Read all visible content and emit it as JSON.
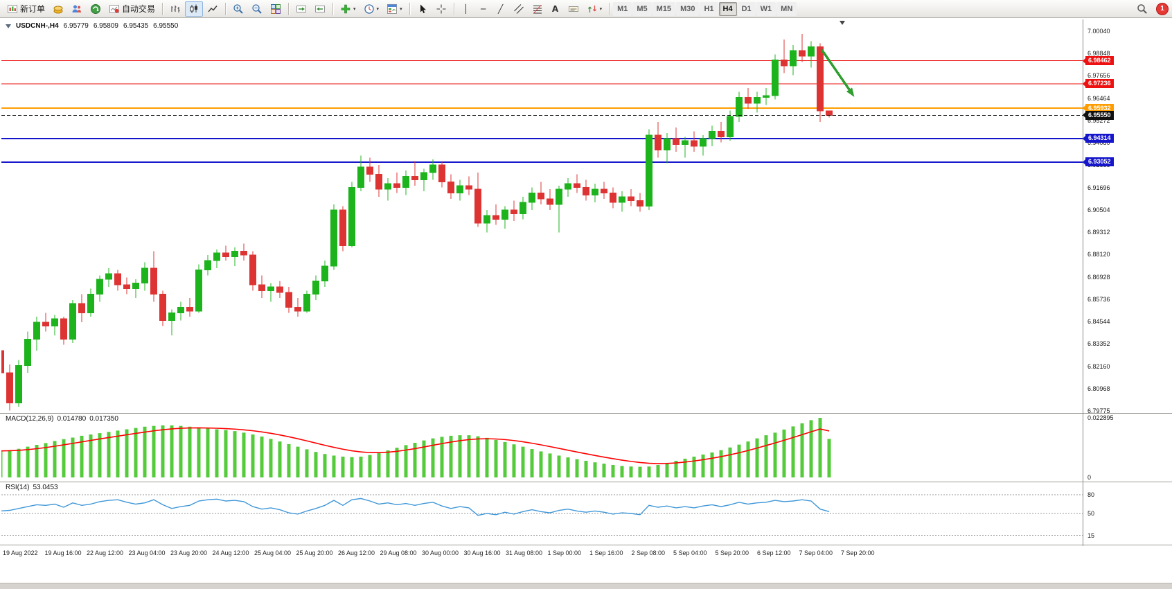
{
  "toolbar": {
    "new_order_label": "新订单",
    "autotrading_label": "自动交易",
    "timeframes": [
      "M1",
      "M5",
      "M15",
      "M30",
      "H1",
      "H4",
      "D1",
      "W1",
      "MN"
    ],
    "active_timeframe": "H4",
    "notification_count": "1",
    "tool_glyphs": {
      "vertical_line": "│",
      "horizontal_line": "─",
      "trendline": "╱",
      "text": "A"
    }
  },
  "icons": {
    "new_order": "candlestick-page",
    "mql_market": "gold-coins",
    "mql_signals": "people",
    "mql_vps": "green-support",
    "autotrading": "chart-red-dot",
    "bars_chart": "ohlc-bars",
    "candles_chart": "candles",
    "line_chart": "polyline",
    "zoom_in": "magnifier-plus",
    "zoom_out": "magnifier-minus",
    "tile_windows": "four-tiles",
    "auto_scroll": "chart-arrow-right",
    "chart_shift": "chart-arrow-left",
    "indicators": "green-plus",
    "periods": "clock",
    "templates": "template-sheet",
    "cursor": "pointer-arrow",
    "crosshair": "crosshair",
    "vertical_line": "│",
    "horizontal_line": "─",
    "trendline": "╱",
    "channel": "parallel-lines",
    "fibonacci": "fibo-lines",
    "text": "A",
    "text_label": "label-box",
    "arrows": "up-down-arrows",
    "search": "magnifier",
    "dropdown_caret": "▾"
  },
  "header": {
    "symbol": "USDCNH-,H4",
    "open": "6.95779",
    "high": "6.95809",
    "low": "6.95435",
    "close": "6.95550"
  },
  "price_axis": {
    "labels": [
      "7.00040",
      "6.98848",
      "6.97656",
      "6.96464",
      "6.95272",
      "6.94080",
      "6.92888",
      "6.91696",
      "6.90504",
      "6.89312",
      "6.88120",
      "6.86928",
      "6.85736",
      "6.84544",
      "6.83352",
      "6.82160",
      "6.80968",
      "6.79775"
    ]
  },
  "time_axis": {
    "labels": [
      "19 Aug 2022",
      "19 Aug 16:00",
      "22 Aug 12:00",
      "23 Aug 04:00",
      "23 Aug 20:00",
      "24 Aug 12:00",
      "25 Aug 04:00",
      "25 Aug 20:00",
      "26 Aug 12:00",
      "29 Aug 08:00",
      "30 Aug 00:00",
      "30 Aug 16:00",
      "31 Aug 08:00",
      "1 Sep 00:00",
      "1 Sep 16:00",
      "2 Sep 08:00",
      "5 Sep 04:00",
      "5 Sep 20:00",
      "6 Sep 12:00",
      "7 Sep 04:00",
      "7 Sep 20:00"
    ]
  },
  "macd": {
    "label": "MACD(12,26,9)",
    "value": "0.014780",
    "signal": "0.017350",
    "axis_max": "0.022895",
    "axis_min": "0"
  },
  "rsi": {
    "label": "RSI(14)",
    "value": "53.0453",
    "level_labels": [
      "80",
      "50",
      "15"
    ]
  },
  "chart_data": [
    {
      "type": "candlestick",
      "title": "USDCNH- H4",
      "timeframe": "H4",
      "ylim": [
        6.79775,
        7.0004
      ],
      "up_color": "#1db31d",
      "down_color": "#dd3333",
      "levels": [
        {
          "value": 6.98462,
          "label": "6.98462",
          "color": "#ee1111",
          "width": 1
        },
        {
          "value": 6.97236,
          "label": "6.97236",
          "color": "#ee1111",
          "width": 1
        },
        {
          "value": 6.95932,
          "label": "6.95932",
          "color": "#ff9d00",
          "width": 2
        },
        {
          "value": 6.94314,
          "label": "6.94314",
          "color": "#1515cc",
          "width": 2
        },
        {
          "value": 6.93052,
          "label": "6.93052",
          "color": "#1515cc",
          "width": 2
        }
      ],
      "current_price": {
        "value": 6.9555,
        "label": "6.95550",
        "color": "#111111"
      },
      "annotation_arrow": {
        "from_bar": 91.2,
        "from_price": 6.9904,
        "to_bar": 94.8,
        "to_price": 6.9653,
        "color": "#2f9e2f"
      },
      "ohlc": [
        [
          6.83,
          6.832,
          6.8,
          6.818
        ],
        [
          6.818,
          6.8225,
          6.798,
          6.802
        ],
        [
          6.802,
          6.825,
          6.8,
          6.822
        ],
        [
          6.822,
          6.84,
          6.818,
          6.836
        ],
        [
          6.836,
          6.848,
          6.83,
          6.845
        ],
        [
          6.845,
          6.85,
          6.84,
          6.843
        ],
        [
          6.843,
          6.849,
          6.838,
          6.847
        ],
        [
          6.847,
          6.848,
          6.833,
          6.836
        ],
        [
          6.836,
          6.857,
          6.834,
          6.855
        ],
        [
          6.855,
          6.86,
          6.845,
          6.85
        ],
        [
          6.85,
          6.863,
          6.848,
          6.86
        ],
        [
          6.86,
          6.87,
          6.856,
          6.868
        ],
        [
          6.868,
          6.874,
          6.864,
          6.871
        ],
        [
          6.871,
          6.873,
          6.862,
          6.865
        ],
        [
          6.865,
          6.869,
          6.86,
          6.863
        ],
        [
          6.863,
          6.868,
          6.858,
          6.866
        ],
        [
          6.866,
          6.877,
          6.862,
          6.874
        ],
        [
          6.874,
          6.883,
          6.856,
          6.86
        ],
        [
          6.86,
          6.862,
          6.843,
          6.846
        ],
        [
          6.846,
          6.852,
          6.838,
          6.85
        ],
        [
          6.85,
          6.856,
          6.846,
          6.853
        ],
        [
          6.853,
          6.858,
          6.848,
          6.851
        ],
        [
          6.851,
          6.876,
          6.85,
          6.873
        ],
        [
          6.873,
          6.881,
          6.87,
          6.878
        ],
        [
          6.878,
          6.884,
          6.874,
          6.882
        ],
        [
          6.882,
          6.886,
          6.878,
          6.88
        ],
        [
          6.88,
          6.885,
          6.875,
          6.883
        ],
        [
          6.883,
          6.887,
          6.878,
          6.881
        ],
        [
          6.881,
          6.883,
          6.862,
          6.865
        ],
        [
          6.865,
          6.87,
          6.858,
          6.862
        ],
        [
          6.862,
          6.866,
          6.856,
          6.864
        ],
        [
          6.864,
          6.867,
          6.858,
          6.861
        ],
        [
          6.861,
          6.864,
          6.85,
          6.853
        ],
        [
          6.853,
          6.858,
          6.848,
          6.851
        ],
        [
          6.851,
          6.862,
          6.85,
          6.86
        ],
        [
          6.86,
          6.87,
          6.857,
          6.867
        ],
        [
          6.867,
          6.878,
          6.864,
          6.875
        ],
        [
          6.875,
          6.908,
          6.873,
          6.905
        ],
        [
          6.905,
          6.907,
          6.883,
          6.886
        ],
        [
          6.886,
          6.92,
          6.885,
          6.917
        ],
        [
          6.917,
          6.934,
          6.915,
          6.928
        ],
        [
          6.928,
          6.933,
          6.92,
          6.924
        ],
        [
          6.924,
          6.929,
          6.912,
          6.916
        ],
        [
          6.916,
          6.922,
          6.91,
          6.919
        ],
        [
          6.919,
          6.925,
          6.914,
          6.917
        ],
        [
          6.917,
          6.926,
          6.913,
          6.923
        ],
        [
          6.923,
          6.931,
          6.918,
          6.921
        ],
        [
          6.921,
          6.927,
          6.915,
          6.925
        ],
        [
          6.925,
          6.932,
          6.921,
          6.929
        ],
        [
          6.929,
          6.931,
          6.917,
          6.92
        ],
        [
          6.92,
          6.924,
          6.911,
          6.914
        ],
        [
          6.914,
          6.921,
          6.91,
          6.918
        ],
        [
          6.918,
          6.923,
          6.913,
          6.916
        ],
        [
          6.916,
          6.925,
          6.896,
          6.898
        ],
        [
          6.898,
          6.905,
          6.893,
          6.902
        ],
        [
          6.902,
          6.908,
          6.897,
          6.9
        ],
        [
          6.9,
          6.907,
          6.895,
          6.905
        ],
        [
          6.905,
          6.91,
          6.899,
          6.903
        ],
        [
          6.903,
          6.912,
          6.9,
          6.909
        ],
        [
          6.909,
          6.917,
          6.905,
          6.914
        ],
        [
          6.914,
          6.92,
          6.908,
          6.911
        ],
        [
          6.911,
          6.916,
          6.905,
          6.908
        ],
        [
          6.908,
          6.918,
          6.893,
          6.916
        ],
        [
          6.916,
          6.922,
          6.912,
          6.919
        ],
        [
          6.919,
          6.924,
          6.914,
          6.917
        ],
        [
          6.917,
          6.921,
          6.91,
          6.913
        ],
        [
          6.913,
          6.919,
          6.909,
          6.916
        ],
        [
          6.916,
          6.92,
          6.911,
          6.914
        ],
        [
          6.914,
          6.917,
          6.906,
          6.909
        ],
        [
          6.909,
          6.915,
          6.904,
          6.912
        ],
        [
          6.912,
          6.916,
          6.907,
          6.91
        ],
        [
          6.91,
          6.914,
          6.904,
          6.907
        ],
        [
          6.907,
          6.948,
          6.905,
          6.945
        ],
        [
          6.945,
          6.952,
          6.933,
          6.937
        ],
        [
          6.937,
          6.946,
          6.93,
          6.943
        ],
        [
          6.943,
          6.949,
          6.936,
          6.94
        ],
        [
          6.94,
          6.944,
          6.933,
          6.942
        ],
        [
          6.942,
          6.947,
          6.936,
          6.939
        ],
        [
          6.939,
          6.945,
          6.934,
          6.943
        ],
        [
          6.943,
          6.95,
          6.939,
          6.947
        ],
        [
          6.947,
          6.952,
          6.941,
          6.944
        ],
        [
          6.944,
          6.958,
          6.942,
          6.955
        ],
        [
          6.955,
          6.968,
          6.952,
          6.965
        ],
        [
          6.965,
          6.97,
          6.959,
          6.962
        ],
        [
          6.962,
          6.968,
          6.957,
          6.965
        ],
        [
          6.965,
          6.97,
          6.961,
          6.966
        ],
        [
          6.966,
          6.988,
          6.964,
          6.985
        ],
        [
          6.985,
          6.996,
          6.978,
          6.982
        ],
        [
          6.982,
          6.993,
          6.977,
          6.99
        ],
        [
          6.99,
          6.999,
          6.984,
          6.987
        ],
        [
          6.987,
          6.995,
          6.981,
          6.992
        ],
        [
          6.992,
          6.994,
          6.952,
          6.9578
        ],
        [
          6.95779,
          6.95809,
          6.95435,
          6.9555
        ]
      ]
    },
    {
      "type": "bar",
      "name": "MACD(12,26,9)",
      "ylim": [
        0,
        0.022895
      ],
      "bar_color": "#55cb3c",
      "signal_color": "#ff0000",
      "signal_period": 9,
      "current_value": 0.01478,
      "current_signal": 0.01735,
      "values": [
        0.0102,
        0.0105,
        0.011,
        0.0118,
        0.0125,
        0.0132,
        0.014,
        0.0147,
        0.0153,
        0.016,
        0.0165,
        0.017,
        0.0175,
        0.018,
        0.0185,
        0.019,
        0.0195,
        0.0198,
        0.02,
        0.02,
        0.0198,
        0.0195,
        0.0192,
        0.0188,
        0.0185,
        0.0182,
        0.0178,
        0.0172,
        0.0165,
        0.0157,
        0.0148,
        0.0138,
        0.0128,
        0.0118,
        0.0108,
        0.0098,
        0.009,
        0.0084,
        0.008,
        0.0078,
        0.008,
        0.0086,
        0.0094,
        0.0104,
        0.0114,
        0.0124,
        0.0133,
        0.0142,
        0.015,
        0.0156,
        0.016,
        0.0162,
        0.0162,
        0.0158,
        0.0152,
        0.0144,
        0.0136,
        0.0127,
        0.0118,
        0.0109,
        0.01,
        0.0092,
        0.0084,
        0.0077,
        0.007,
        0.0064,
        0.0058,
        0.0053,
        0.0048,
        0.0044,
        0.0042,
        0.0041,
        0.0042,
        0.0048,
        0.0056,
        0.0064,
        0.0072,
        0.008,
        0.0088,
        0.0096,
        0.0105,
        0.0115,
        0.0126,
        0.0138,
        0.015,
        0.0162,
        0.0172,
        0.0184,
        0.0196,
        0.0208,
        0.022,
        0.0229,
        0.0148
      ]
    },
    {
      "type": "line",
      "name": "RSI(14)",
      "ylim": [
        0,
        100
      ],
      "levels": [
        80,
        50,
        15
      ],
      "line_color": "#3f97d8",
      "current_value": 53.0453,
      "values": [
        54,
        55,
        58,
        61,
        64,
        63,
        65,
        60,
        67,
        63,
        65,
        69,
        71,
        72,
        68,
        65,
        67,
        72,
        64,
        58,
        61,
        63,
        70,
        72,
        73,
        70,
        71,
        69,
        61,
        57,
        59,
        56,
        51,
        49,
        54,
        58,
        63,
        71,
        63,
        72,
        74,
        70,
        65,
        67,
        64,
        66,
        63,
        66,
        68,
        62,
        58,
        61,
        59,
        47,
        50,
        48,
        52,
        49,
        53,
        56,
        53,
        51,
        55,
        57,
        54,
        52,
        54,
        52,
        49,
        51,
        50,
        48,
        63,
        60,
        62,
        59,
        61,
        59,
        62,
        64,
        61,
        64,
        68,
        65,
        67,
        68,
        71,
        69,
        70,
        72,
        70,
        57,
        53
      ]
    }
  ]
}
